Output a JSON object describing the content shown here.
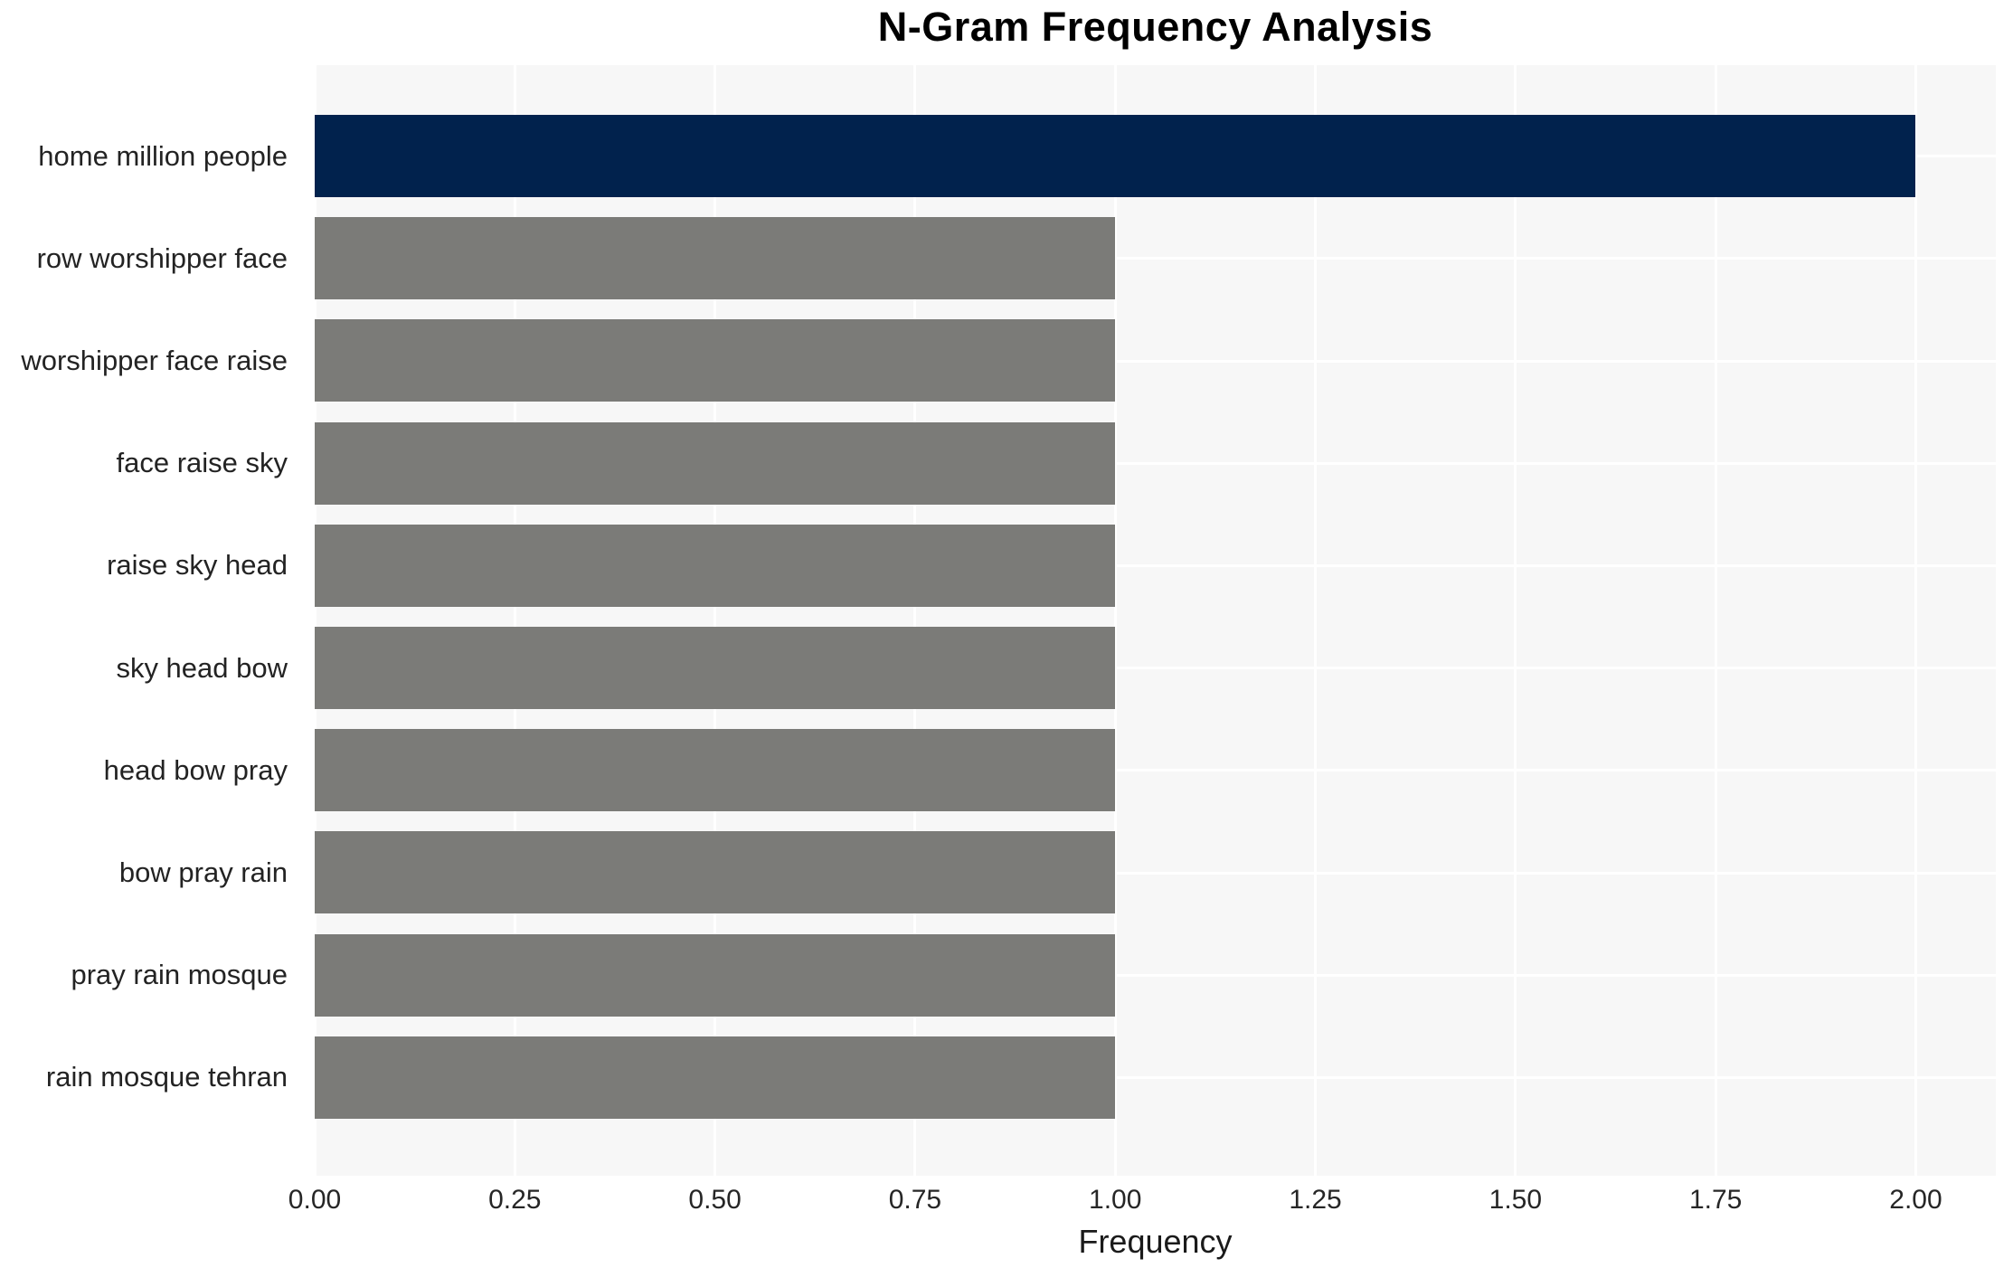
{
  "title": "N-Gram Frequency Analysis",
  "chart_data": {
    "type": "bar",
    "orientation": "horizontal",
    "title": "N-Gram Frequency Analysis",
    "xlabel": "Frequency",
    "ylabel": "",
    "categories": [
      "home million people",
      "row worshipper face",
      "worshipper face raise",
      "face raise sky",
      "raise sky head",
      "sky head bow",
      "head bow pray",
      "bow pray rain",
      "pray rain mosque",
      "rain mosque tehran"
    ],
    "values": [
      2.0,
      1.0,
      1.0,
      1.0,
      1.0,
      1.0,
      1.0,
      1.0,
      1.0,
      1.0
    ],
    "xlim": [
      0,
      2.1
    ],
    "xticks": [
      0.0,
      0.25,
      0.5,
      0.75,
      1.0,
      1.25,
      1.5,
      1.75,
      2.0
    ],
    "xtick_labels": [
      "0.00",
      "0.25",
      "0.50",
      "0.75",
      "1.00",
      "1.25",
      "1.50",
      "1.75",
      "2.00"
    ],
    "grid": true,
    "legend": false,
    "colors": {
      "highlight_bar": "#01224d",
      "default_bar": "#7b7b78",
      "plot_background": "#f7f7f7",
      "grid_line": "#ffffff",
      "title_text": "#000000",
      "tick_text": "#262626"
    },
    "bar_colors": [
      "#01224d",
      "#7b7b78",
      "#7b7b78",
      "#7b7b78",
      "#7b7b78",
      "#7b7b78",
      "#7b7b78",
      "#7b7b78",
      "#7b7b78",
      "#7b7b78"
    ]
  }
}
